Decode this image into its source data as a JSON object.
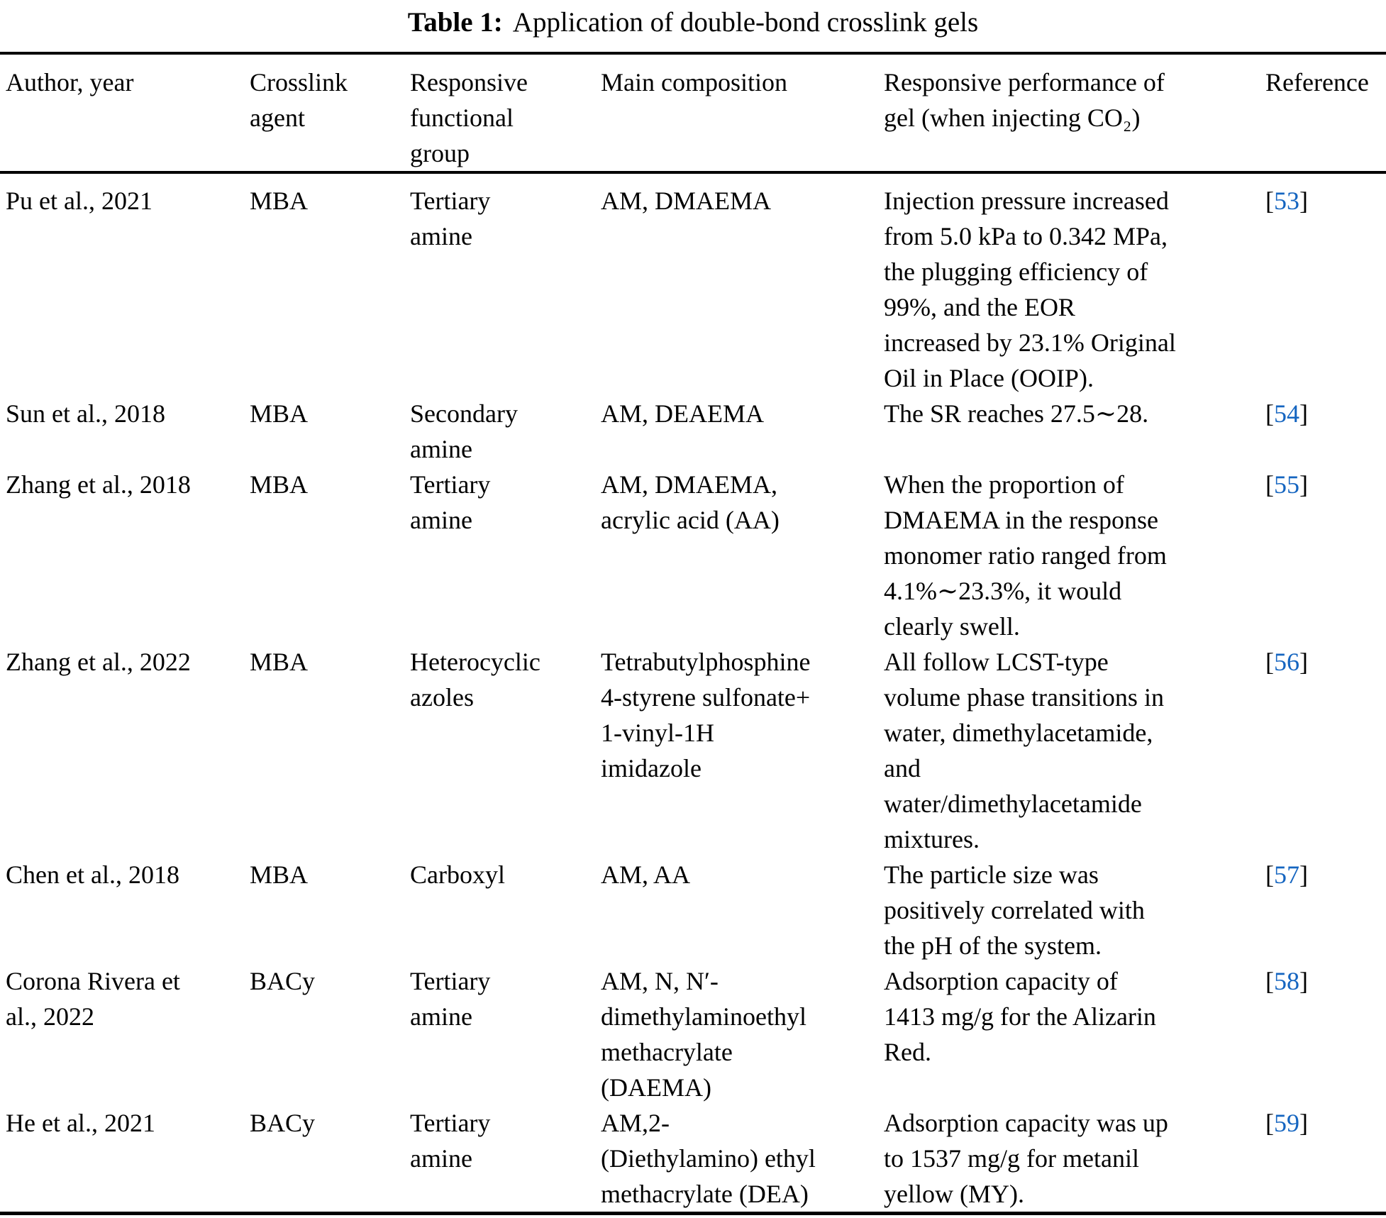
{
  "caption": {
    "label": "Table 1:",
    "text": "Application of double-bond crosslink gels"
  },
  "accent_color": "#1565c0",
  "table": {
    "headers": [
      "Author, year",
      "Crosslink\nagent",
      "Responsive\nfunctional\ngroup",
      "Main composition",
      "Responsive performance of\ngel (when injecting CO₂)",
      "Reference"
    ],
    "ref_brackets": {
      "open": "[",
      "close": "]"
    },
    "rows": [
      {
        "author": "Pu et al., 2021",
        "agent": "MBA",
        "group": "Tertiary\namine",
        "composition": "AM, DMAEMA",
        "performance": "Injection pressure increased\nfrom 5.0 kPa to 0.342 MPa,\nthe plugging efficiency of\n99%, and the EOR\nincreased by 23.1% Original\nOil in Place (OOIP).",
        "ref": "53"
      },
      {
        "author": "Sun et al., 2018",
        "agent": "MBA",
        "group": "Secondary\namine",
        "composition": "AM, DEAEMA",
        "performance": "The SR reaches 27.5∼28.",
        "ref": "54"
      },
      {
        "author": "Zhang et al., 2018",
        "agent": "MBA",
        "group": "Tertiary\namine",
        "composition": "AM, DMAEMA,\nacrylic acid (AA)",
        "performance": "When the proportion of\nDMAEMA in the response\nmonomer ratio ranged from\n4.1%∼23.3%, it would\nclearly swell.",
        "ref": "55"
      },
      {
        "author": "Zhang et al., 2022",
        "agent": "MBA",
        "group": "Heterocyclic\nazoles",
        "composition": "Tetrabutylphosphine\n4-styrene sulfonate+\n1-vinyl-1H\nimidazole",
        "performance": "All follow LCST-type\nvolume phase transitions in\nwater, dimethylacetamide,\nand\nwater/dimethylacetamide\nmixtures.",
        "ref": "56"
      },
      {
        "author": "Chen et al., 2018",
        "agent": "MBA",
        "group": "Carboxyl",
        "composition": "AM, AA",
        "performance": "The particle size was\npositively correlated with\nthe pH of the system.",
        "ref": "57"
      },
      {
        "author": "Corona Rivera et\nal., 2022",
        "agent": "BACy",
        "group": "Tertiary\namine",
        "composition": "AM, N, N′-\ndimethylaminoethyl\nmethacrylate\n(DAEMA)",
        "performance": "Adsorption capacity of\n1413 mg/g for the Alizarin\nRed.",
        "ref": "58"
      },
      {
        "author": "He et al., 2021",
        "agent": "BACy",
        "group": "Tertiary\namine",
        "composition": "AM,2-\n(Diethylamino) ethyl\nmethacrylate (DEA)",
        "performance": "Adsorption capacity was up\nto 1537 mg/g for metanil\nyellow (MY).",
        "ref": "59"
      }
    ]
  }
}
